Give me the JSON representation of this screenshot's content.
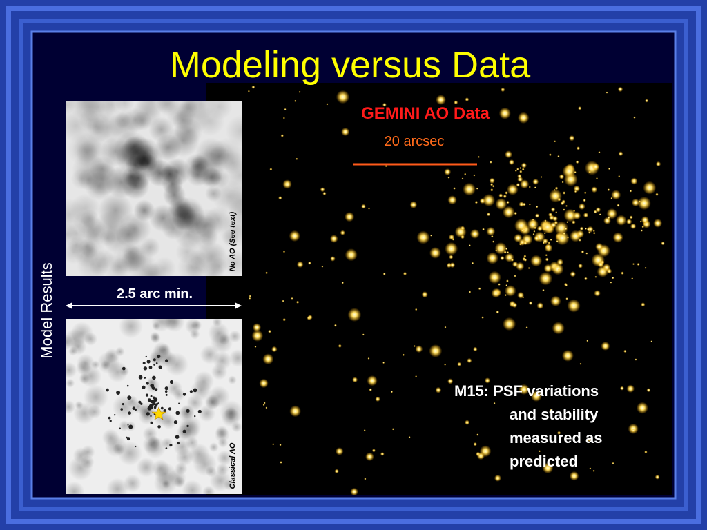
{
  "slide": {
    "title": "Modeling versus Data",
    "side_label": "Model Results",
    "scale_label": "2.5 arc min.",
    "panel_top_label": "No AO (See text)",
    "panel_bottom_label": "Classical AO",
    "image_title": "GEMINI AO Data",
    "image_scale": "20 arcsec",
    "caption": [
      "M15: PSF variations",
      "and stability",
      "measured as",
      "predicted"
    ]
  }
}
